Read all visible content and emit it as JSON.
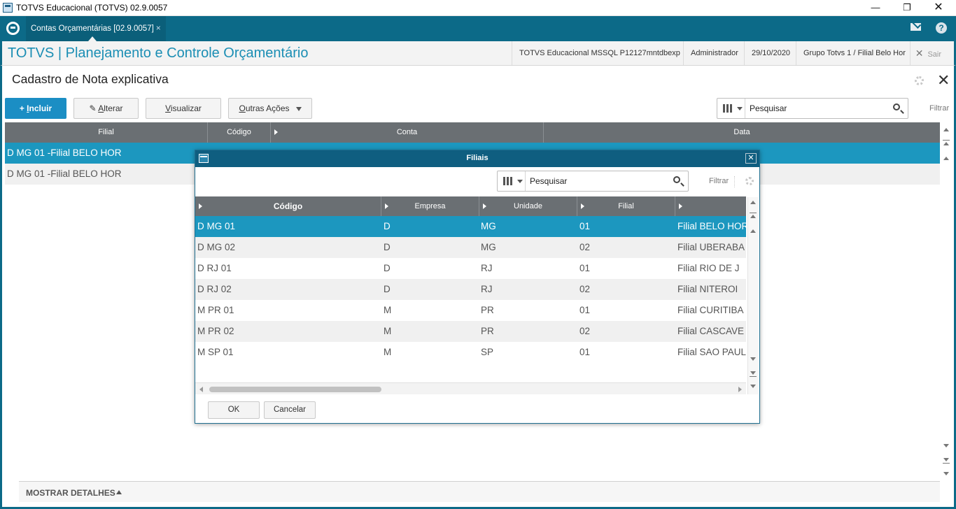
{
  "window": {
    "title": "TOTVS Educacional (TOTVS) 02.9.0057"
  },
  "appbar": {
    "tab_label": "Contas Orçamentárias [02.9.0057]",
    "tab_close": "×"
  },
  "module": {
    "title": "TOTVS | Planejamento e Controle Orçamentário",
    "environment": "TOTVS Educacional MSSQL P12127mntdbexp",
    "user": "Administrador",
    "date": "29/10/2020",
    "group": "Grupo Totvs 1 / Filial Belo Hor",
    "exit_label": "Sair"
  },
  "page": {
    "title": "Cadastro de Nota explicativa"
  },
  "toolbar": {
    "incluir_prefix": "+ ",
    "incluir_first": "I",
    "incluir_rest": "ncluir",
    "alterar_first": "A",
    "alterar_rest": "lterar",
    "visualizar_first": "V",
    "visualizar_rest": "isualizar",
    "outras_first": "O",
    "outras_rest": "utras Ações"
  },
  "search": {
    "placeholder": "Pesquisar",
    "filter_label": "Filtrar"
  },
  "main_grid": {
    "columns": [
      "Filial",
      "Código",
      "Conta",
      "Data"
    ],
    "rows": [
      {
        "filial": "D MG 01 -Filial BELO HOR"
      },
      {
        "filial": "D MG 01 -Filial BELO HOR"
      }
    ]
  },
  "details": {
    "label": "MOSTRAR DETALHES"
  },
  "dialog": {
    "title": "Filiais",
    "search_placeholder": "Pesquisar",
    "filter_label": "Filtrar",
    "columns": [
      "Código",
      "Empresa",
      "Unidade",
      "Filial",
      ""
    ],
    "rows": [
      {
        "codigo": "D MG 01",
        "empresa": "D",
        "unidade": "MG",
        "filial": "01",
        "nome": "Filial BELO HOR"
      },
      {
        "codigo": "D MG 02",
        "empresa": "D",
        "unidade": "MG",
        "filial": "02",
        "nome": "Filial UBERABA"
      },
      {
        "codigo": "D RJ 01",
        "empresa": "D",
        "unidade": "RJ",
        "filial": "01",
        "nome": "Filial RIO DE J"
      },
      {
        "codigo": "D RJ 02",
        "empresa": "D",
        "unidade": "RJ",
        "filial": "02",
        "nome": "Filial NITEROI"
      },
      {
        "codigo": "M PR 01",
        "empresa": "M",
        "unidade": "PR",
        "filial": "01",
        "nome": "Filial CURITIBA"
      },
      {
        "codigo": "M PR 02",
        "empresa": "M",
        "unidade": "PR",
        "filial": "02",
        "nome": "Filial CASCAVE"
      },
      {
        "codigo": "M SP 01",
        "empresa": "M",
        "unidade": "SP",
        "filial": "01",
        "nome": "Filial SAO PAUL"
      }
    ],
    "ok_label": "OK",
    "cancel_label": "Cancelar"
  },
  "colors": {
    "teal": "#0c6a88",
    "selection": "#1c97bf",
    "primary_button": "#1b8ec4",
    "header_gray": "#6a6f73"
  }
}
